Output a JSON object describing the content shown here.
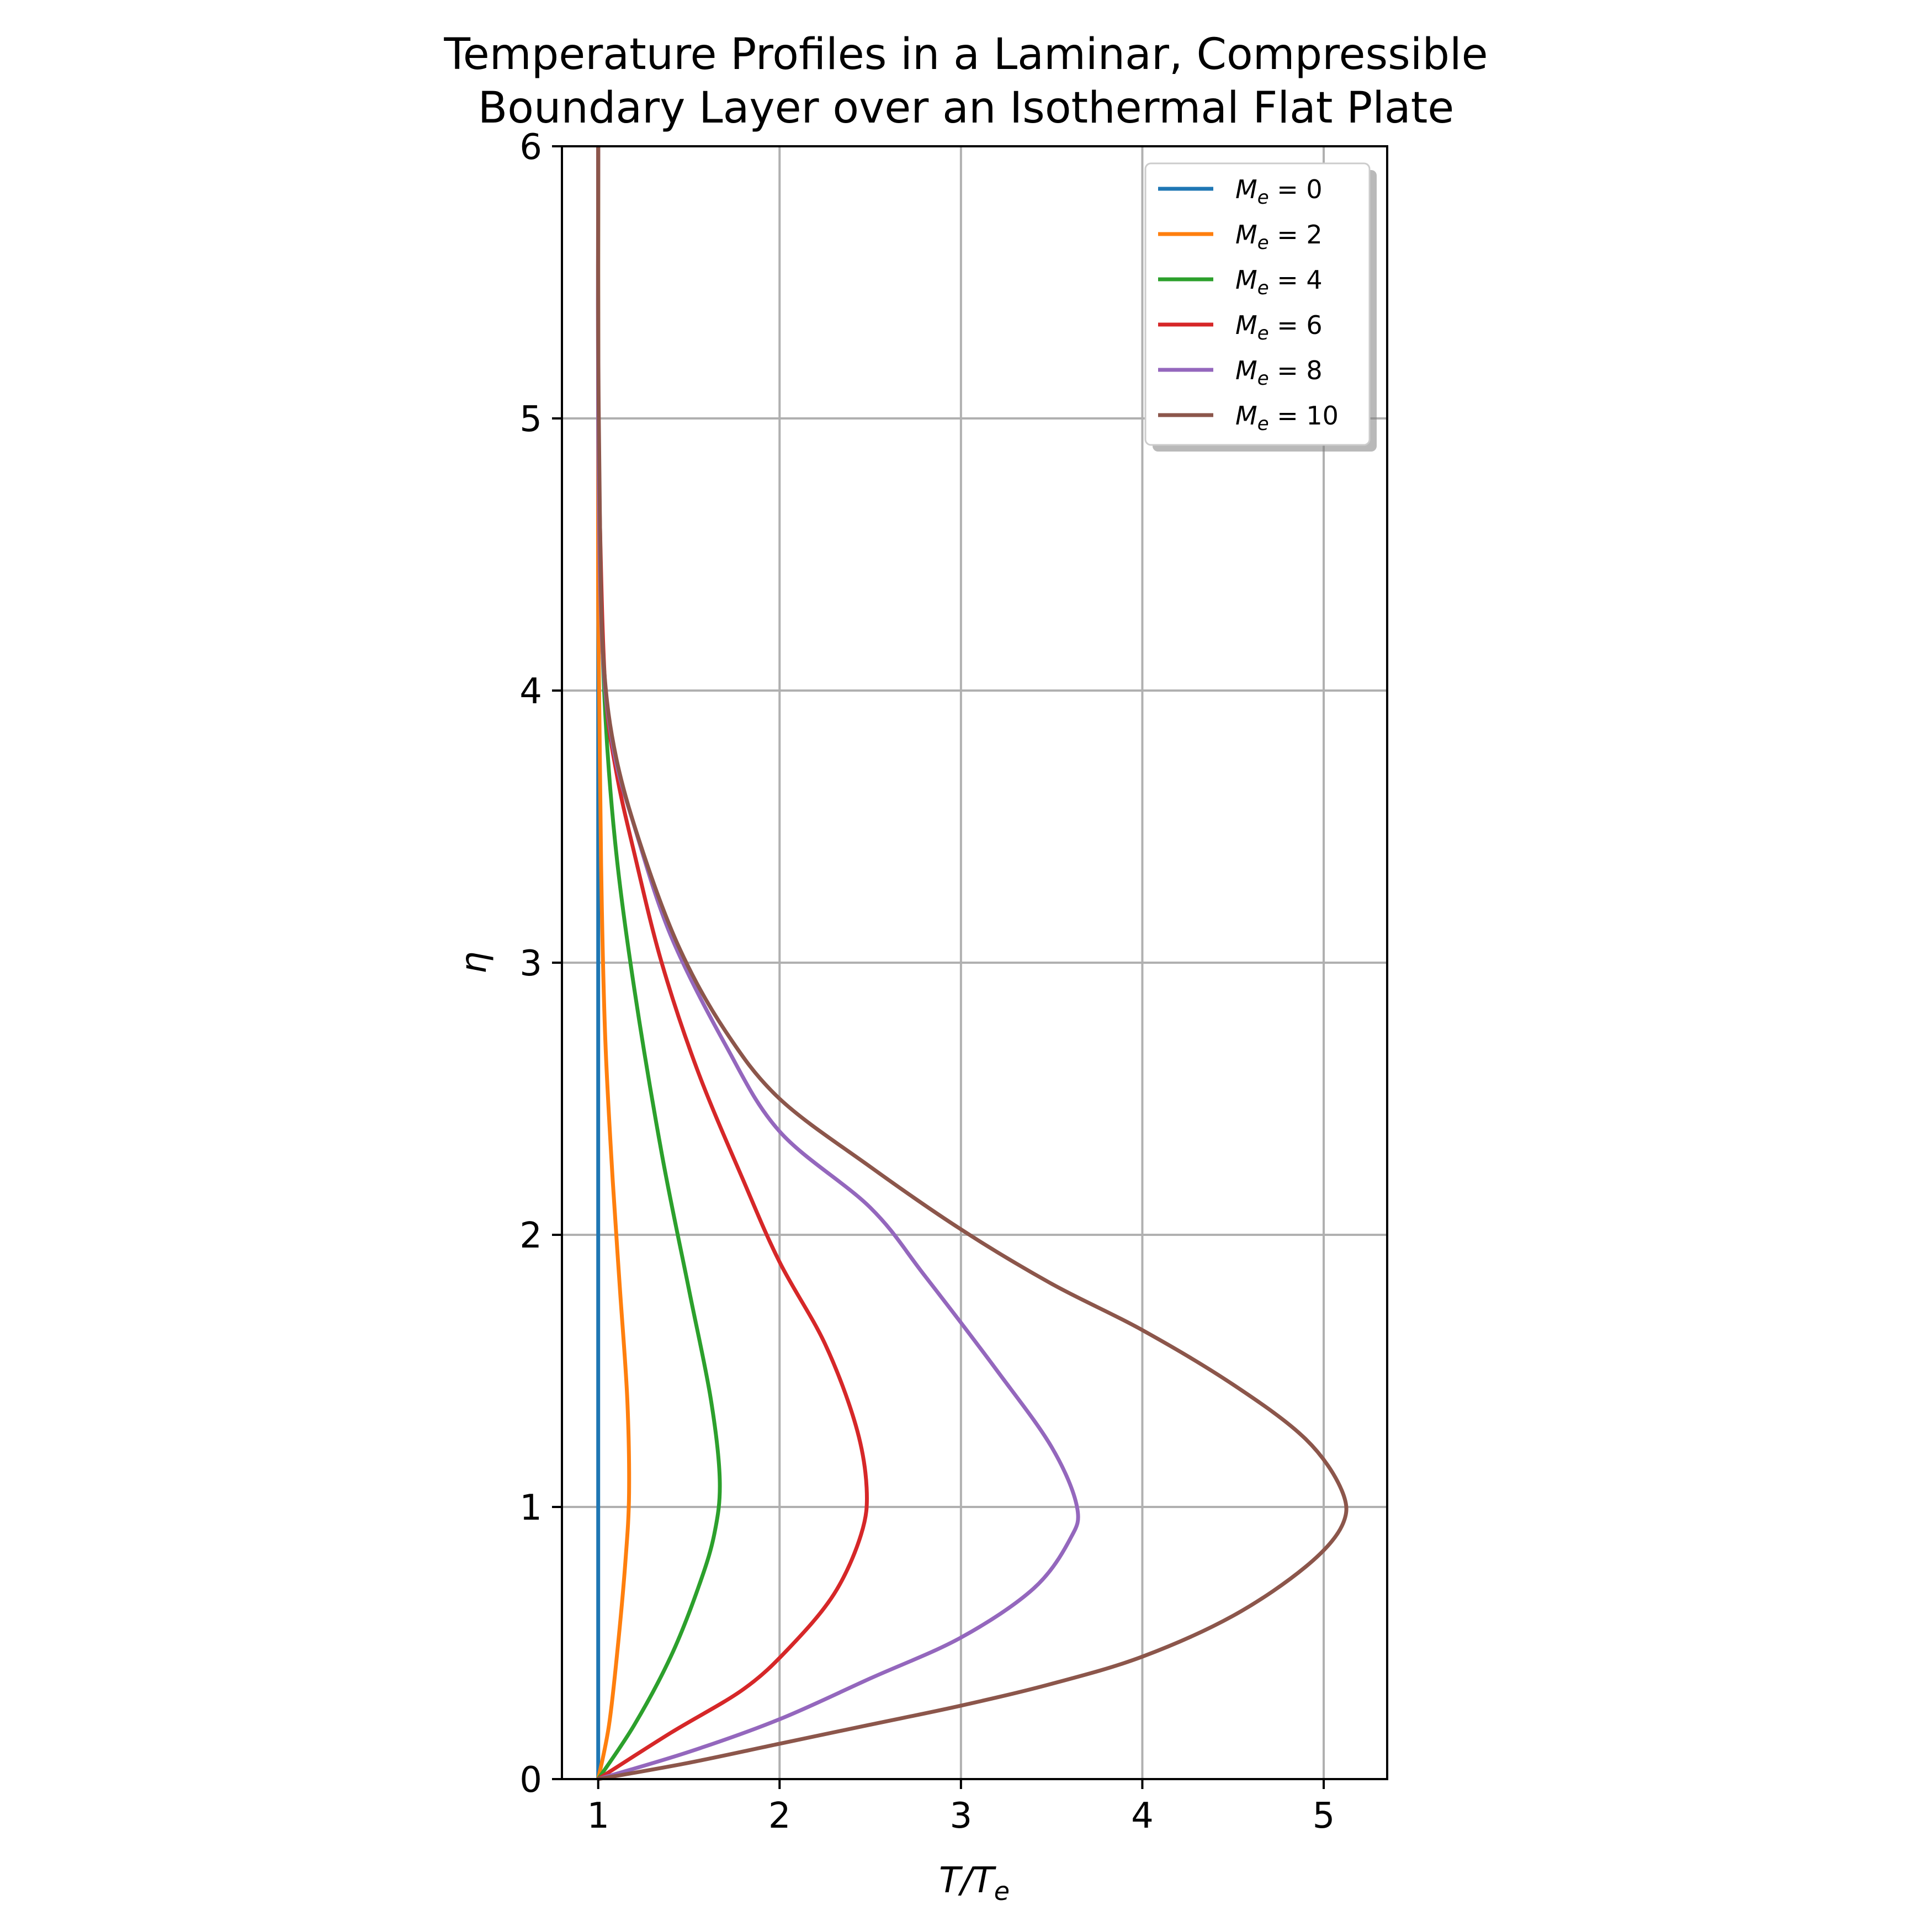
{
  "chart_data": {
    "type": "line",
    "title_line1": "Temperature Profiles in a Laminar, Compressible",
    "title_line2": "Boundary Layer over an Isothermal Flat Plate",
    "xlabel_main": "T/T",
    "xlabel_sub": "e",
    "ylabel": "η",
    "xlim": [
      0.8,
      5.35
    ],
    "ylim": [
      0,
      6
    ],
    "xticks": [
      1,
      2,
      3,
      4,
      5
    ],
    "yticks": [
      0,
      1,
      2,
      3,
      4,
      5,
      6
    ],
    "grid": true,
    "legend_position": "top-right",
    "series": [
      {
        "name": "M_e = 0",
        "symbol": "M",
        "sub": "e",
        "eq": "= 0",
        "color": "#1f77b4",
        "points": [
          [
            1.0,
            0
          ],
          [
            1.0,
            1
          ],
          [
            1.0,
            2
          ],
          [
            1.0,
            3
          ],
          [
            1.0,
            4
          ],
          [
            1.0,
            5
          ],
          [
            1.0,
            6
          ]
        ]
      },
      {
        "name": "M_e = 2",
        "symbol": "M",
        "sub": "e",
        "eq": "= 2",
        "color": "#ff7f0e",
        "points": [
          [
            1.0,
            0
          ],
          [
            1.06,
            0.2
          ],
          [
            1.11,
            0.5
          ],
          [
            1.15,
            0.8
          ],
          [
            1.17,
            1.05
          ],
          [
            1.16,
            1.4
          ],
          [
            1.12,
            1.8
          ],
          [
            1.08,
            2.2
          ],
          [
            1.04,
            2.7
          ],
          [
            1.02,
            3.2
          ],
          [
            1.01,
            3.7
          ],
          [
            1.0,
            4.3
          ],
          [
            1.0,
            5
          ],
          [
            1.0,
            6
          ]
        ]
      },
      {
        "name": "M_e = 4",
        "symbol": "M",
        "sub": "e",
        "eq": "= 4",
        "color": "#2ca02c",
        "points": [
          [
            1.0,
            0
          ],
          [
            1.2,
            0.2
          ],
          [
            1.4,
            0.45
          ],
          [
            1.55,
            0.7
          ],
          [
            1.64,
            0.9
          ],
          [
            1.67,
            1.1
          ],
          [
            1.62,
            1.4
          ],
          [
            1.5,
            1.8
          ],
          [
            1.35,
            2.3
          ],
          [
            1.2,
            2.9
          ],
          [
            1.1,
            3.4
          ],
          [
            1.04,
            3.9
          ],
          [
            1.01,
            4.5
          ],
          [
            1.0,
            5.2
          ],
          [
            1.0,
            6
          ]
        ]
      },
      {
        "name": "M_e = 6",
        "symbol": "M",
        "sub": "e",
        "eq": "= 6",
        "color": "#d62728",
        "points": [
          [
            1.0,
            0
          ],
          [
            1.4,
            0.17
          ],
          [
            1.8,
            0.33
          ],
          [
            2.05,
            0.48
          ],
          [
            2.3,
            0.68
          ],
          [
            2.45,
            0.9
          ],
          [
            2.48,
            1.07
          ],
          [
            2.42,
            1.3
          ],
          [
            2.25,
            1.6
          ],
          [
            2.0,
            1.9
          ],
          [
            1.8,
            2.2
          ],
          [
            1.55,
            2.6
          ],
          [
            1.35,
            3.0
          ],
          [
            1.2,
            3.4
          ],
          [
            1.1,
            3.7
          ],
          [
            1.04,
            4.0
          ],
          [
            1.01,
            4.6
          ],
          [
            1.0,
            5.2
          ],
          [
            1.0,
            6
          ]
        ]
      },
      {
        "name": "M_e = 8",
        "symbol": "M",
        "sub": "e",
        "eq": "= 8",
        "color": "#9467bd",
        "points": [
          [
            1.0,
            0
          ],
          [
            1.5,
            0.1
          ],
          [
            2.0,
            0.22
          ],
          [
            2.5,
            0.37
          ],
          [
            3.0,
            0.52
          ],
          [
            3.4,
            0.7
          ],
          [
            3.6,
            0.88
          ],
          [
            3.64,
            1.0
          ],
          [
            3.5,
            1.22
          ],
          [
            3.2,
            1.5
          ],
          [
            2.8,
            1.85
          ],
          [
            2.5,
            2.1
          ],
          [
            2.0,
            2.38
          ],
          [
            1.7,
            2.7
          ],
          [
            1.4,
            3.1
          ],
          [
            1.2,
            3.5
          ],
          [
            1.08,
            3.8
          ],
          [
            1.02,
            4.2
          ],
          [
            1.0,
            5.0
          ],
          [
            1.0,
            6
          ]
        ]
      },
      {
        "name": "M_e = 10",
        "symbol": "M",
        "sub": "e",
        "eq": "= 10",
        "color": "#8c564b",
        "points": [
          [
            1.0,
            0
          ],
          [
            1.5,
            0.06
          ],
          [
            2.0,
            0.13
          ],
          [
            2.5,
            0.2
          ],
          [
            3.0,
            0.27
          ],
          [
            3.5,
            0.35
          ],
          [
            4.0,
            0.45
          ],
          [
            4.5,
            0.6
          ],
          [
            4.9,
            0.78
          ],
          [
            5.1,
            0.93
          ],
          [
            5.1,
            1.06
          ],
          [
            4.9,
            1.25
          ],
          [
            4.5,
            1.45
          ],
          [
            4.0,
            1.65
          ],
          [
            3.5,
            1.82
          ],
          [
            3.0,
            2.02
          ],
          [
            2.5,
            2.25
          ],
          [
            2.0,
            2.5
          ],
          [
            1.7,
            2.75
          ],
          [
            1.45,
            3.05
          ],
          [
            1.25,
            3.4
          ],
          [
            1.1,
            3.75
          ],
          [
            1.03,
            4.1
          ],
          [
            1.01,
            4.6
          ],
          [
            1.0,
            5.3
          ],
          [
            1.0,
            6
          ]
        ]
      }
    ]
  }
}
